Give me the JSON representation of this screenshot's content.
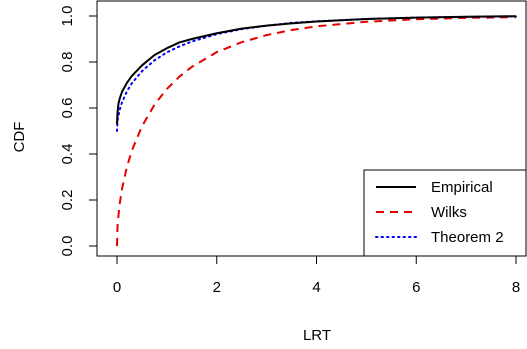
{
  "chart_data": {
    "type": "line",
    "title": "",
    "xlabel": "LRT",
    "ylabel": "CDF",
    "xlim": [
      0,
      8
    ],
    "ylim": [
      0,
      1
    ],
    "xticks": [
      0,
      2,
      4,
      6,
      8
    ],
    "xtick_labels": [
      "0",
      "2",
      "4",
      "6",
      "8"
    ],
    "yticks": [
      0,
      0.2,
      0.4,
      0.6,
      0.8,
      1
    ],
    "ytick_labels": [
      "0.0",
      "0.2",
      "0.4",
      "0.6",
      "0.8",
      "1.0"
    ],
    "grid": false,
    "legend_position": "bottom-right",
    "series": [
      {
        "name": "Empirical",
        "color": "#000000",
        "style": "solid",
        "x": [
          0,
          0.01,
          0.03,
          0.06,
          0.1,
          0.2,
          0.3,
          0.5,
          0.75,
          1,
          1.25,
          1.5,
          2,
          2.5,
          3,
          3.5,
          4,
          5,
          6,
          7,
          8
        ],
        "y": [
          0.53,
          0.58,
          0.62,
          0.645,
          0.67,
          0.71,
          0.74,
          0.785,
          0.83,
          0.86,
          0.885,
          0.9,
          0.925,
          0.945,
          0.958,
          0.968,
          0.976,
          0.987,
          0.993,
          0.997,
          0.999
        ]
      },
      {
        "name": "Wilks",
        "color": "#e60000",
        "style": "dashed",
        "x": [
          0,
          0.01,
          0.02,
          0.05,
          0.1,
          0.2,
          0.3,
          0.5,
          0.75,
          1,
          1.25,
          1.5,
          2,
          2.5,
          3,
          3.5,
          4,
          5,
          6,
          7,
          8
        ],
        "y": [
          0,
          0.08,
          0.112,
          0.177,
          0.248,
          0.345,
          0.416,
          0.52,
          0.614,
          0.683,
          0.736,
          0.779,
          0.843,
          0.886,
          0.917,
          0.939,
          0.955,
          0.975,
          0.986,
          0.992,
          0.995
        ]
      },
      {
        "name": "Theorem 2",
        "color": "#0000ff",
        "style": "dotted",
        "x": [
          0,
          0.01,
          0.02,
          0.05,
          0.1,
          0.2,
          0.3,
          0.5,
          0.75,
          1,
          1.25,
          1.5,
          2,
          2.5,
          3,
          3.5,
          4,
          5,
          6,
          7,
          8
        ],
        "y": [
          0.5,
          0.54,
          0.556,
          0.589,
          0.624,
          0.673,
          0.708,
          0.76,
          0.807,
          0.842,
          0.868,
          0.889,
          0.921,
          0.943,
          0.958,
          0.97,
          0.977,
          0.987,
          0.993,
          0.996,
          0.998
        ]
      }
    ]
  }
}
